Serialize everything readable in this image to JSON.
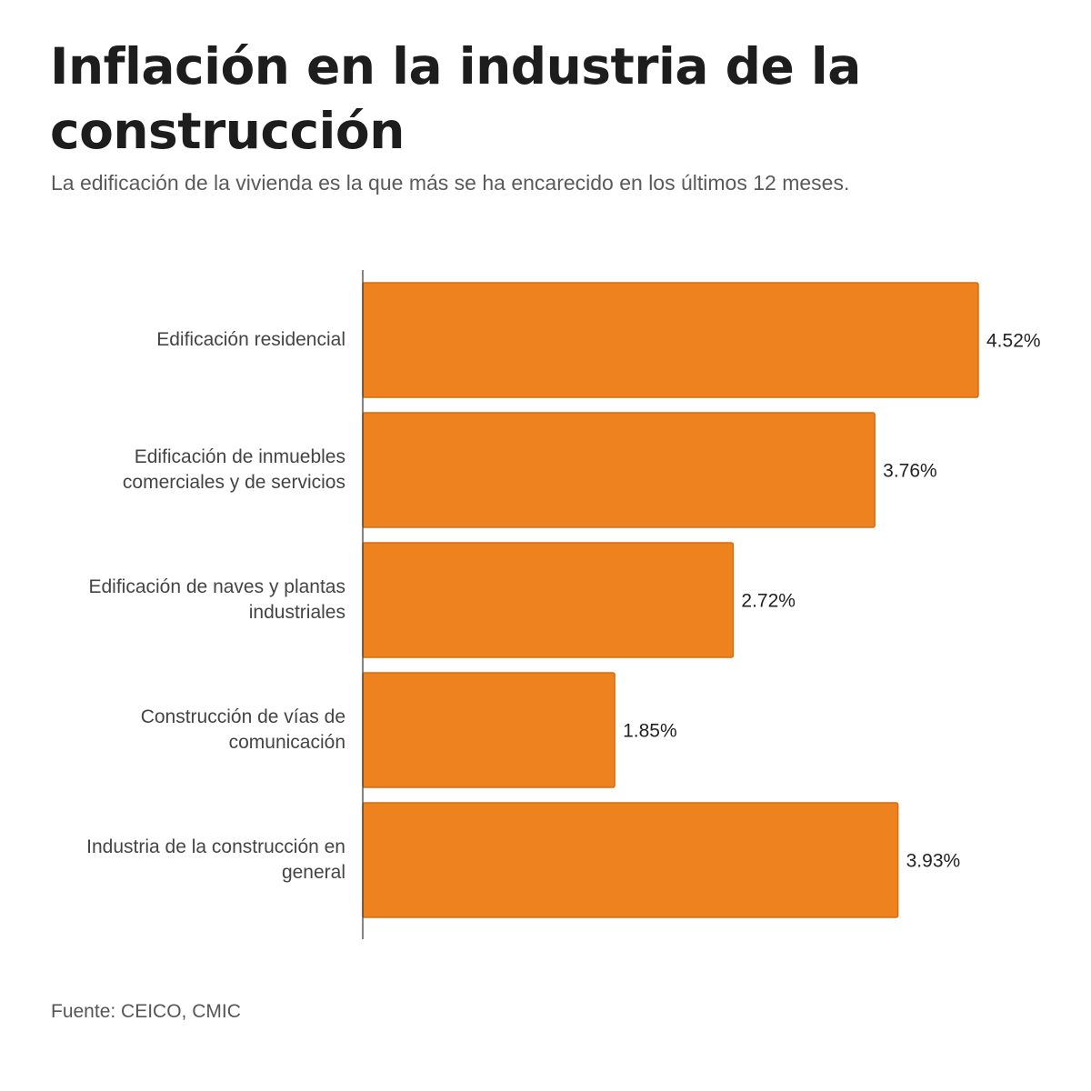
{
  "title": "Inflación en la industria de la construcción",
  "subtitle": "La edificación de la vivienda es la que más se ha encarecido en los últimos 12 meses.",
  "source": "Fuente: CEICO, CMIC",
  "colors": {
    "bar": "#ed821e",
    "bar_edge": "#d56c10",
    "axis": "#333333",
    "label": "#444444",
    "value": "#222222"
  },
  "chart_data": {
    "type": "bar",
    "orientation": "horizontal",
    "categories": [
      [
        "Edificación residencial"
      ],
      [
        "Edificación de inmuebles",
        "comerciales y de servicios"
      ],
      [
        "Edificación de naves y plantas",
        "industriales"
      ],
      [
        "Construcción de vías de",
        "comunicación"
      ],
      [
        "Industria de la construcción en",
        "general"
      ]
    ],
    "values": [
      4.52,
      3.76,
      2.72,
      1.85,
      3.93
    ],
    "value_labels": [
      "4.52%",
      "3.76%",
      "2.72%",
      "1.85%",
      "3.93%"
    ],
    "xlim": [
      0,
      4.52
    ],
    "grid": false,
    "legend": "none"
  }
}
